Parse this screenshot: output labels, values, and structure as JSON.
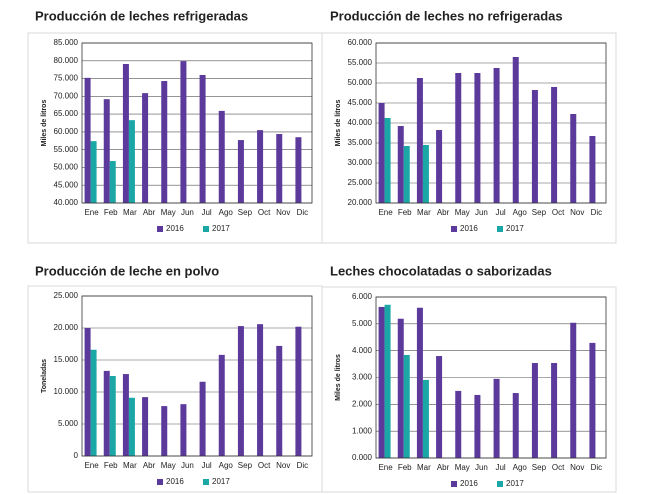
{
  "chart_data": [
    {
      "type": "bar",
      "title": "Producción de leches refrigeradas",
      "y_label": "Miles de litros",
      "categories": [
        "Ene",
        "Feb",
        "Mar",
        "Abr",
        "May",
        "Jun",
        "Jul",
        "Ago",
        "Sep",
        "Oct",
        "Nov",
        "Dic"
      ],
      "series": [
        {
          "name": "2016",
          "color": "#5b3a9c",
          "values": [
            75200,
            69200,
            79100,
            70900,
            74300,
            79900,
            76000,
            65900,
            57700,
            60500,
            59400,
            58500
          ]
        },
        {
          "name": "2017",
          "color": "#1ba7a6",
          "values": [
            57400,
            51800,
            63300,
            null,
            null,
            null,
            null,
            null,
            null,
            null,
            null,
            null
          ]
        }
      ],
      "ylim": [
        40000,
        85000
      ],
      "yticks": [
        {
          "value": 40000,
          "label": "40.000"
        },
        {
          "value": 45000,
          "label": "45.000"
        },
        {
          "value": 50000,
          "label": "50.000"
        },
        {
          "value": 55000,
          "label": "55.000"
        },
        {
          "value": 60000,
          "label": "60.000"
        },
        {
          "value": 65000,
          "label": "65.000"
        },
        {
          "value": 70000,
          "label": "70.000"
        },
        {
          "value": 75000,
          "label": "75.000"
        },
        {
          "value": 80000,
          "label": "80.000"
        },
        {
          "value": 85000,
          "label": "85.000"
        }
      ],
      "grid": true
    },
    {
      "type": "bar",
      "title": "Producción de leches no refrigeradas",
      "y_label": "Miles de litros",
      "categories": [
        "Ene",
        "Feb",
        "Mar",
        "Abr",
        "May",
        "Jun",
        "Jul",
        "Ago",
        "Sep",
        "Oct",
        "Nov",
        "Dic"
      ],
      "series": [
        {
          "name": "2016",
          "color": "#5b3a9c",
          "values": [
            45000,
            39250,
            51250,
            38250,
            52500,
            52500,
            53750,
            56500,
            48250,
            49000,
            42250,
            36750
          ]
        },
        {
          "name": "2017",
          "color": "#1ba7a6",
          "values": [
            41250,
            34250,
            34500,
            null,
            null,
            null,
            null,
            null,
            null,
            null,
            null,
            null
          ]
        }
      ],
      "ylim": [
        20000,
        60000
      ],
      "yticks": [
        {
          "value": 20000,
          "label": "20.000"
        },
        {
          "value": 25000,
          "label": "25.000"
        },
        {
          "value": 30000,
          "label": "30.000"
        },
        {
          "value": 35000,
          "label": "35.000"
        },
        {
          "value": 40000,
          "label": "40.000"
        },
        {
          "value": 45000,
          "label": "45.000"
        },
        {
          "value": 50000,
          "label": "50.000"
        },
        {
          "value": 55000,
          "label": "55.000"
        },
        {
          "value": 60000,
          "label": "60.000"
        }
      ],
      "grid": true
    },
    {
      "type": "bar",
      "title": "Producción de leche en polvo",
      "y_label": "Toneladas",
      "categories": [
        "Ene",
        "Feb",
        "Mar",
        "Abr",
        "May",
        "Jun",
        "Jul",
        "Ago",
        "Sep",
        "Oct",
        "Nov",
        "Dic"
      ],
      "series": [
        {
          "name": "2016",
          "color": "#5b3a9c",
          "values": [
            20000,
            13300,
            12800,
            9200,
            7800,
            8100,
            11600,
            15800,
            20300,
            20600,
            17200,
            20200
          ]
        },
        {
          "name": "2017",
          "color": "#1ba7a6",
          "values": [
            16600,
            12500,
            9100,
            null,
            null,
            null,
            null,
            null,
            null,
            null,
            null,
            null
          ]
        }
      ],
      "ylim": [
        0,
        25000
      ],
      "yticks": [
        0,
        {
          "value": 5000,
          "label": "5.000"
        },
        {
          "value": 10000,
          "label": "10.000"
        },
        {
          "value": 15000,
          "label": "15.000"
        },
        {
          "value": 20000,
          "label": "20.000"
        },
        {
          "value": 25000,
          "label": "25.000"
        }
      ],
      "grid": true
    },
    {
      "type": "bar",
      "title": "Leches chocolatadas o saborizadas",
      "y_label": "Miles de litros",
      "categories": [
        "Ene",
        "Feb",
        "Mar",
        "Abr",
        "May",
        "Jun",
        "Jul",
        "Ago",
        "Sep",
        "Oct",
        "Nov",
        "Dic"
      ],
      "series": [
        {
          "name": "2016",
          "color": "#5b3a9c",
          "values": [
            5630,
            5190,
            5600,
            3800,
            2500,
            2350,
            2950,
            2420,
            3540,
            3540,
            5040,
            4290
          ]
        },
        {
          "name": "2017",
          "color": "#1ba7a6",
          "values": [
            5710,
            3840,
            2910,
            null,
            null,
            null,
            null,
            null,
            null,
            null,
            null,
            null
          ]
        }
      ],
      "ylim": [
        0,
        6000
      ],
      "yticks": [
        {
          "value": 0,
          "label": "0.000"
        },
        {
          "value": 1000,
          "label": "1.000"
        },
        {
          "value": 2000,
          "label": "2.000"
        },
        {
          "value": 3000,
          "label": "3.000"
        },
        {
          "value": 4000,
          "label": "4.000"
        },
        {
          "value": 5000,
          "label": "5.000"
        },
        {
          "value": 6000,
          "label": "6.000"
        }
      ],
      "grid": true
    }
  ]
}
